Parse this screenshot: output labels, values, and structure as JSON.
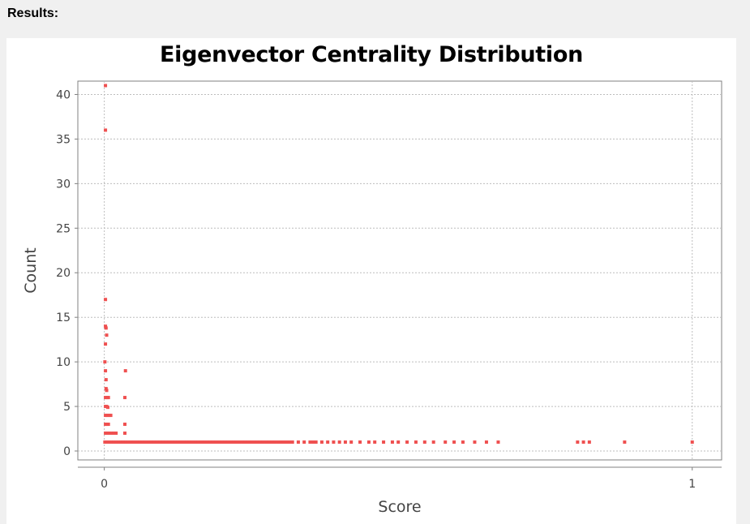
{
  "header": {
    "results_label": "Results:"
  },
  "chart_data": {
    "type": "scatter",
    "title": "Eigenvector Centrality Distribution",
    "xlabel": "Score",
    "ylabel": "Count",
    "xlim": [
      -0.045,
      1.05
    ],
    "ylim": [
      -1,
      41.5
    ],
    "xticks": [
      0,
      1
    ],
    "yticks": [
      0,
      5,
      10,
      15,
      20,
      25,
      30,
      35,
      40
    ],
    "grid": true,
    "legend": "none",
    "color": "#ef5050",
    "points": [
      [
        0.002,
        41
      ],
      [
        0.002,
        36
      ],
      [
        0.002,
        17
      ],
      [
        0.002,
        14
      ],
      [
        0.003,
        13.8
      ],
      [
        0.004,
        13
      ],
      [
        0.002,
        12
      ],
      [
        0.001,
        10
      ],
      [
        0.002,
        9
      ],
      [
        0.003,
        8
      ],
      [
        0.003,
        7
      ],
      [
        0.004,
        6.8
      ],
      [
        0.002,
        6
      ],
      [
        0.005,
        6
      ],
      [
        0.007,
        6
      ],
      [
        0.002,
        5
      ],
      [
        0.004,
        5
      ],
      [
        0.006,
        4.9
      ],
      [
        0.002,
        4
      ],
      [
        0.005,
        4
      ],
      [
        0.008,
        4
      ],
      [
        0.011,
        4
      ],
      [
        0.002,
        3
      ],
      [
        0.004,
        3
      ],
      [
        0.007,
        3
      ],
      [
        0.002,
        2
      ],
      [
        0.005,
        2
      ],
      [
        0.008,
        2
      ],
      [
        0.012,
        2
      ],
      [
        0.016,
        2
      ],
      [
        0.02,
        2
      ],
      [
        0.036,
        9
      ],
      [
        0.035,
        6
      ],
      [
        0.035,
        3
      ],
      [
        0.035,
        2
      ],
      [
        0.001,
        1
      ],
      [
        0.004,
        1
      ],
      [
        0.008,
        1
      ],
      [
        0.012,
        1
      ],
      [
        0.016,
        1
      ],
      [
        0.02,
        1
      ],
      [
        0.024,
        1
      ],
      [
        0.028,
        1
      ],
      [
        0.032,
        1
      ],
      [
        0.036,
        1
      ],
      [
        0.04,
        1
      ],
      [
        0.045,
        1
      ],
      [
        0.05,
        1
      ],
      [
        0.055,
        1
      ],
      [
        0.06,
        1
      ],
      [
        0.065,
        1
      ],
      [
        0.07,
        1
      ],
      [
        0.075,
        1
      ],
      [
        0.08,
        1
      ],
      [
        0.085,
        1
      ],
      [
        0.09,
        1
      ],
      [
        0.095,
        1
      ],
      [
        0.1,
        1
      ],
      [
        0.105,
        1
      ],
      [
        0.11,
        1
      ],
      [
        0.115,
        1
      ],
      [
        0.12,
        1
      ],
      [
        0.125,
        1
      ],
      [
        0.13,
        1
      ],
      [
        0.135,
        1
      ],
      [
        0.14,
        1
      ],
      [
        0.145,
        1
      ],
      [
        0.15,
        1
      ],
      [
        0.155,
        1
      ],
      [
        0.16,
        1
      ],
      [
        0.165,
        1
      ],
      [
        0.17,
        1
      ],
      [
        0.175,
        1
      ],
      [
        0.18,
        1
      ],
      [
        0.185,
        1
      ],
      [
        0.19,
        1
      ],
      [
        0.195,
        1
      ],
      [
        0.2,
        1
      ],
      [
        0.205,
        1
      ],
      [
        0.21,
        1
      ],
      [
        0.215,
        1
      ],
      [
        0.22,
        1
      ],
      [
        0.225,
        1
      ],
      [
        0.23,
        1
      ],
      [
        0.235,
        1
      ],
      [
        0.24,
        1
      ],
      [
        0.245,
        1
      ],
      [
        0.25,
        1
      ],
      [
        0.255,
        1
      ],
      [
        0.26,
        1
      ],
      [
        0.265,
        1
      ],
      [
        0.27,
        1
      ],
      [
        0.275,
        1
      ],
      [
        0.28,
        1
      ],
      [
        0.285,
        1
      ],
      [
        0.29,
        1
      ],
      [
        0.295,
        1
      ],
      [
        0.3,
        1
      ],
      [
        0.305,
        1
      ],
      [
        0.31,
        1
      ],
      [
        0.315,
        1
      ],
      [
        0.32,
        1
      ],
      [
        0.33,
        1
      ],
      [
        0.34,
        1
      ],
      [
        0.35,
        1
      ],
      [
        0.355,
        1
      ],
      [
        0.36,
        1
      ],
      [
        0.37,
        1
      ],
      [
        0.38,
        1
      ],
      [
        0.39,
        1
      ],
      [
        0.4,
        1
      ],
      [
        0.41,
        1
      ],
      [
        0.42,
        1
      ],
      [
        0.435,
        1
      ],
      [
        0.45,
        1
      ],
      [
        0.46,
        1
      ],
      [
        0.475,
        1
      ],
      [
        0.49,
        1
      ],
      [
        0.5,
        1
      ],
      [
        0.515,
        1
      ],
      [
        0.53,
        1
      ],
      [
        0.545,
        1
      ],
      [
        0.56,
        1
      ],
      [
        0.58,
        1
      ],
      [
        0.595,
        1
      ],
      [
        0.61,
        1
      ],
      [
        0.63,
        1
      ],
      [
        0.65,
        1
      ],
      [
        0.67,
        1
      ],
      [
        0.805,
        1
      ],
      [
        0.815,
        1
      ],
      [
        0.825,
        1
      ],
      [
        0.885,
        1
      ],
      [
        1.0,
        1
      ]
    ]
  }
}
